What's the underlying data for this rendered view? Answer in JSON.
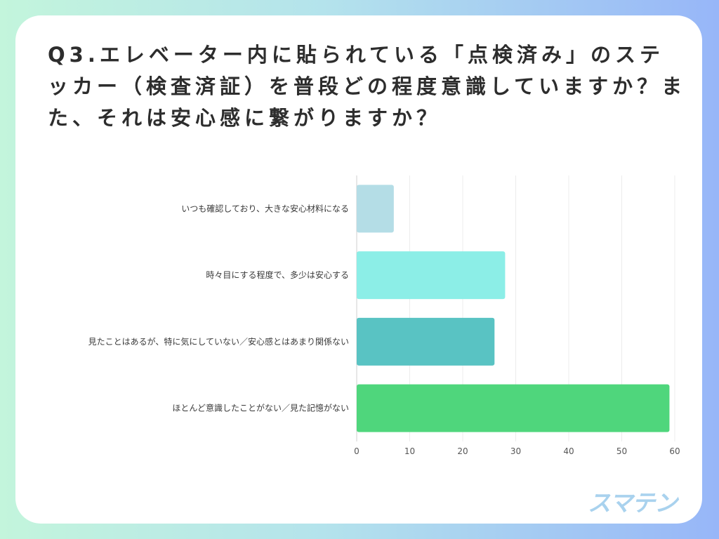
{
  "question": "Q3.エレベーター内に貼られている「点検済み」のステッカー（検査済証）を普段どの程度意識していますか？また、それは安心感に繋がりますか？",
  "logo": "スマテン",
  "chart_data": {
    "type": "bar",
    "orientation": "horizontal",
    "title": "",
    "xlabel": "",
    "ylabel": "",
    "xlim": [
      0,
      60
    ],
    "ticks": [
      0,
      10,
      20,
      30,
      40,
      50,
      60
    ],
    "grid": true,
    "categories": [
      "いつも確認しており、大きな安心材料になる",
      "時々目にする程度で、多少は安心する",
      "見たことはあるが、特に気にしていない／安心感とはあまり関係ない",
      "ほとんど意識したことがない／見た記憶がない"
    ],
    "values": [
      7,
      28,
      26,
      59
    ],
    "colors": [
      "#b4dde6",
      "#8ceee7",
      "#59c3c3",
      "#4fd67c"
    ]
  }
}
